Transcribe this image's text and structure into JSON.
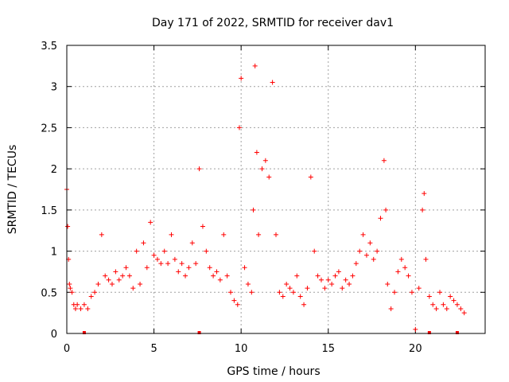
{
  "chart_data": {
    "type": "scatter",
    "title": "Day 171 of 2022, SRMTID for receiver dav1",
    "xlabel": "GPS time / hours",
    "ylabel": "SRMTID / TECUs",
    "xlim": [
      0,
      24
    ],
    "ylim": [
      0,
      3.5
    ],
    "xticks": [
      0,
      5,
      10,
      15,
      20
    ],
    "xtick_labels": [
      "0",
      "5",
      "10",
      "15",
      "20"
    ],
    "yticks": [
      0,
      0.5,
      1,
      1.5,
      2,
      2.5,
      3,
      3.5
    ],
    "ytick_labels": [
      "0",
      "0.5",
      "1",
      "1.5",
      "2",
      "2.5",
      "3",
      "3.5"
    ],
    "grid": true,
    "marker": "+",
    "series": [
      {
        "name": "SRMTID",
        "color": "#ff0000",
        "x": [
          0.0,
          0.05,
          0.1,
          0.15,
          0.2,
          0.3,
          0.4,
          0.5,
          0.6,
          0.8,
          1.0,
          1.2,
          1.4,
          1.6,
          1.8,
          2.0,
          2.2,
          2.4,
          2.6,
          2.8,
          3.0,
          3.2,
          3.4,
          3.6,
          3.8,
          4.0,
          4.2,
          4.4,
          4.6,
          4.8,
          5.0,
          5.2,
          5.4,
          5.6,
          5.8,
          6.0,
          6.2,
          6.4,
          6.6,
          6.8,
          7.0,
          7.2,
          7.4,
          7.6,
          7.8,
          8.0,
          8.2,
          8.4,
          8.6,
          8.8,
          9.0,
          9.2,
          9.4,
          9.6,
          9.8,
          9.9,
          10.0,
          10.2,
          10.4,
          10.6,
          10.7,
          10.8,
          10.9,
          11.0,
          11.2,
          11.4,
          11.6,
          11.8,
          12.0,
          12.2,
          12.4,
          12.6,
          12.8,
          13.0,
          13.2,
          13.4,
          13.6,
          13.8,
          14.0,
          14.2,
          14.4,
          14.6,
          14.8,
          15.0,
          15.2,
          15.4,
          15.6,
          15.8,
          16.0,
          16.2,
          16.4,
          16.6,
          16.8,
          17.0,
          17.2,
          17.4,
          17.6,
          17.8,
          18.0,
          18.2,
          18.3,
          18.4,
          18.6,
          18.8,
          19.0,
          19.2,
          19.4,
          19.6,
          19.8,
          20.0,
          20.2,
          20.4,
          20.5,
          20.6,
          20.8,
          21.0,
          21.2,
          21.4,
          21.6,
          21.8,
          22.0,
          22.2,
          22.4,
          22.6,
          22.8
        ],
        "y": [
          1.75,
          1.3,
          0.9,
          0.6,
          0.55,
          0.5,
          0.35,
          0.3,
          0.35,
          0.3,
          0.35,
          0.3,
          0.45,
          0.5,
          0.6,
          1.2,
          0.7,
          0.65,
          0.6,
          0.75,
          0.65,
          0.7,
          0.8,
          0.7,
          0.55,
          1.0,
          0.6,
          1.1,
          0.8,
          1.35,
          0.95,
          0.9,
          0.85,
          1.0,
          0.85,
          1.2,
          0.9,
          0.75,
          0.85,
          0.7,
          0.8,
          1.1,
          0.85,
          2.0,
          1.3,
          1.0,
          0.8,
          0.7,
          0.75,
          0.65,
          1.2,
          0.7,
          0.5,
          0.4,
          0.35,
          2.5,
          3.1,
          0.8,
          0.6,
          0.5,
          1.5,
          3.25,
          2.2,
          1.2,
          2.0,
          2.1,
          1.9,
          3.05,
          1.2,
          0.5,
          0.45,
          0.6,
          0.55,
          0.5,
          0.7,
          0.45,
          0.35,
          0.55,
          1.9,
          1.0,
          0.7,
          0.65,
          0.55,
          0.65,
          0.6,
          0.7,
          0.75,
          0.55,
          0.65,
          0.6,
          0.7,
          0.85,
          1.0,
          1.2,
          0.95,
          1.1,
          0.9,
          1.0,
          1.4,
          2.1,
          1.5,
          0.6,
          0.3,
          0.5,
          0.75,
          0.9,
          0.8,
          0.7,
          0.5,
          0.05,
          0.55,
          1.5,
          1.7,
          0.9,
          0.45,
          0.35,
          0.3,
          0.5,
          0.35,
          0.3,
          0.45,
          0.4,
          0.35,
          0.3,
          0.25
        ]
      }
    ]
  }
}
